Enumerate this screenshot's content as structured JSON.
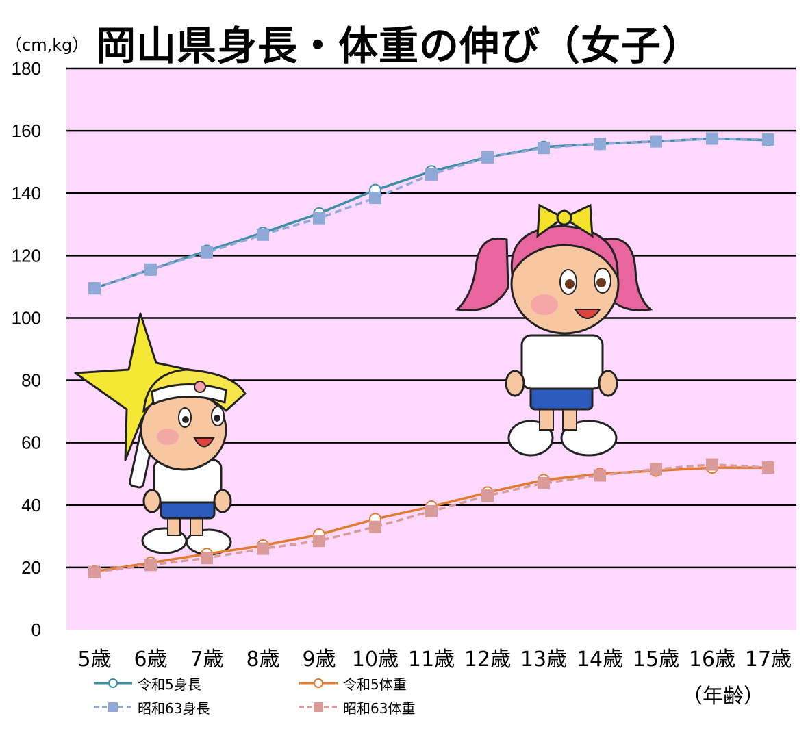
{
  "chart_data": {
    "type": "line",
    "title": "岡山県身長・体重の伸び（女子）",
    "unit_label": "（cm,kg）",
    "xlabel": "（年齢）",
    "categories": [
      "5歳",
      "6歳",
      "7歳",
      "8歳",
      "9歳",
      "10歳",
      "11歳",
      "12歳",
      "13歳",
      "14歳",
      "15歳",
      "16歳",
      "17歳"
    ],
    "ylim": [
      0,
      180
    ],
    "yticks": [
      "0",
      "20",
      "40",
      "60",
      "80",
      "100",
      "120",
      "140",
      "160",
      "180"
    ],
    "grid": true,
    "legend_position": "bottom",
    "series": [
      {
        "name": "令和5身長",
        "marker": "circle",
        "dash": false,
        "color": "#3d8fa6",
        "values": [
          109.5,
          115.5,
          121.5,
          127.3,
          133.5,
          141.0,
          147.0,
          151.5,
          154.8,
          155.8,
          156.6,
          157.5,
          157.0
        ]
      },
      {
        "name": "令和5体重",
        "marker": "circle",
        "dash": false,
        "color": "#e07b30",
        "values": [
          18.7,
          21.5,
          24.3,
          27.0,
          30.5,
          35.5,
          39.5,
          44.0,
          48.0,
          50.0,
          51.0,
          52.0,
          52.0
        ]
      },
      {
        "name": "昭和63身長",
        "marker": "square",
        "dash": true,
        "color": "#8ea8d8",
        "values": [
          109.5,
          115.5,
          121.0,
          126.7,
          132.0,
          138.5,
          146.0,
          151.5,
          154.5,
          155.8,
          156.6,
          157.5,
          157.2
        ]
      },
      {
        "name": "昭和63体重",
        "marker": "square",
        "dash": true,
        "color": "#d99a98",
        "values": [
          18.5,
          20.8,
          23.0,
          26.0,
          28.5,
          33.0,
          38.0,
          43.0,
          47.0,
          49.5,
          51.5,
          53.0,
          52.0
        ]
      }
    ]
  },
  "illustrations": {
    "boy": {
      "icon": "boy-mascot-with-star-icon",
      "star_color": "#f5e834",
      "hair_color": "#f7e64a"
    },
    "girl": {
      "icon": "girl-mascot-pink-ponytails-icon",
      "hair_color": "#e8659e",
      "ribbon_color": "#f5e22a"
    }
  },
  "colors": {
    "plot_bg": "#ffd9ff",
    "grid": "#000000"
  }
}
